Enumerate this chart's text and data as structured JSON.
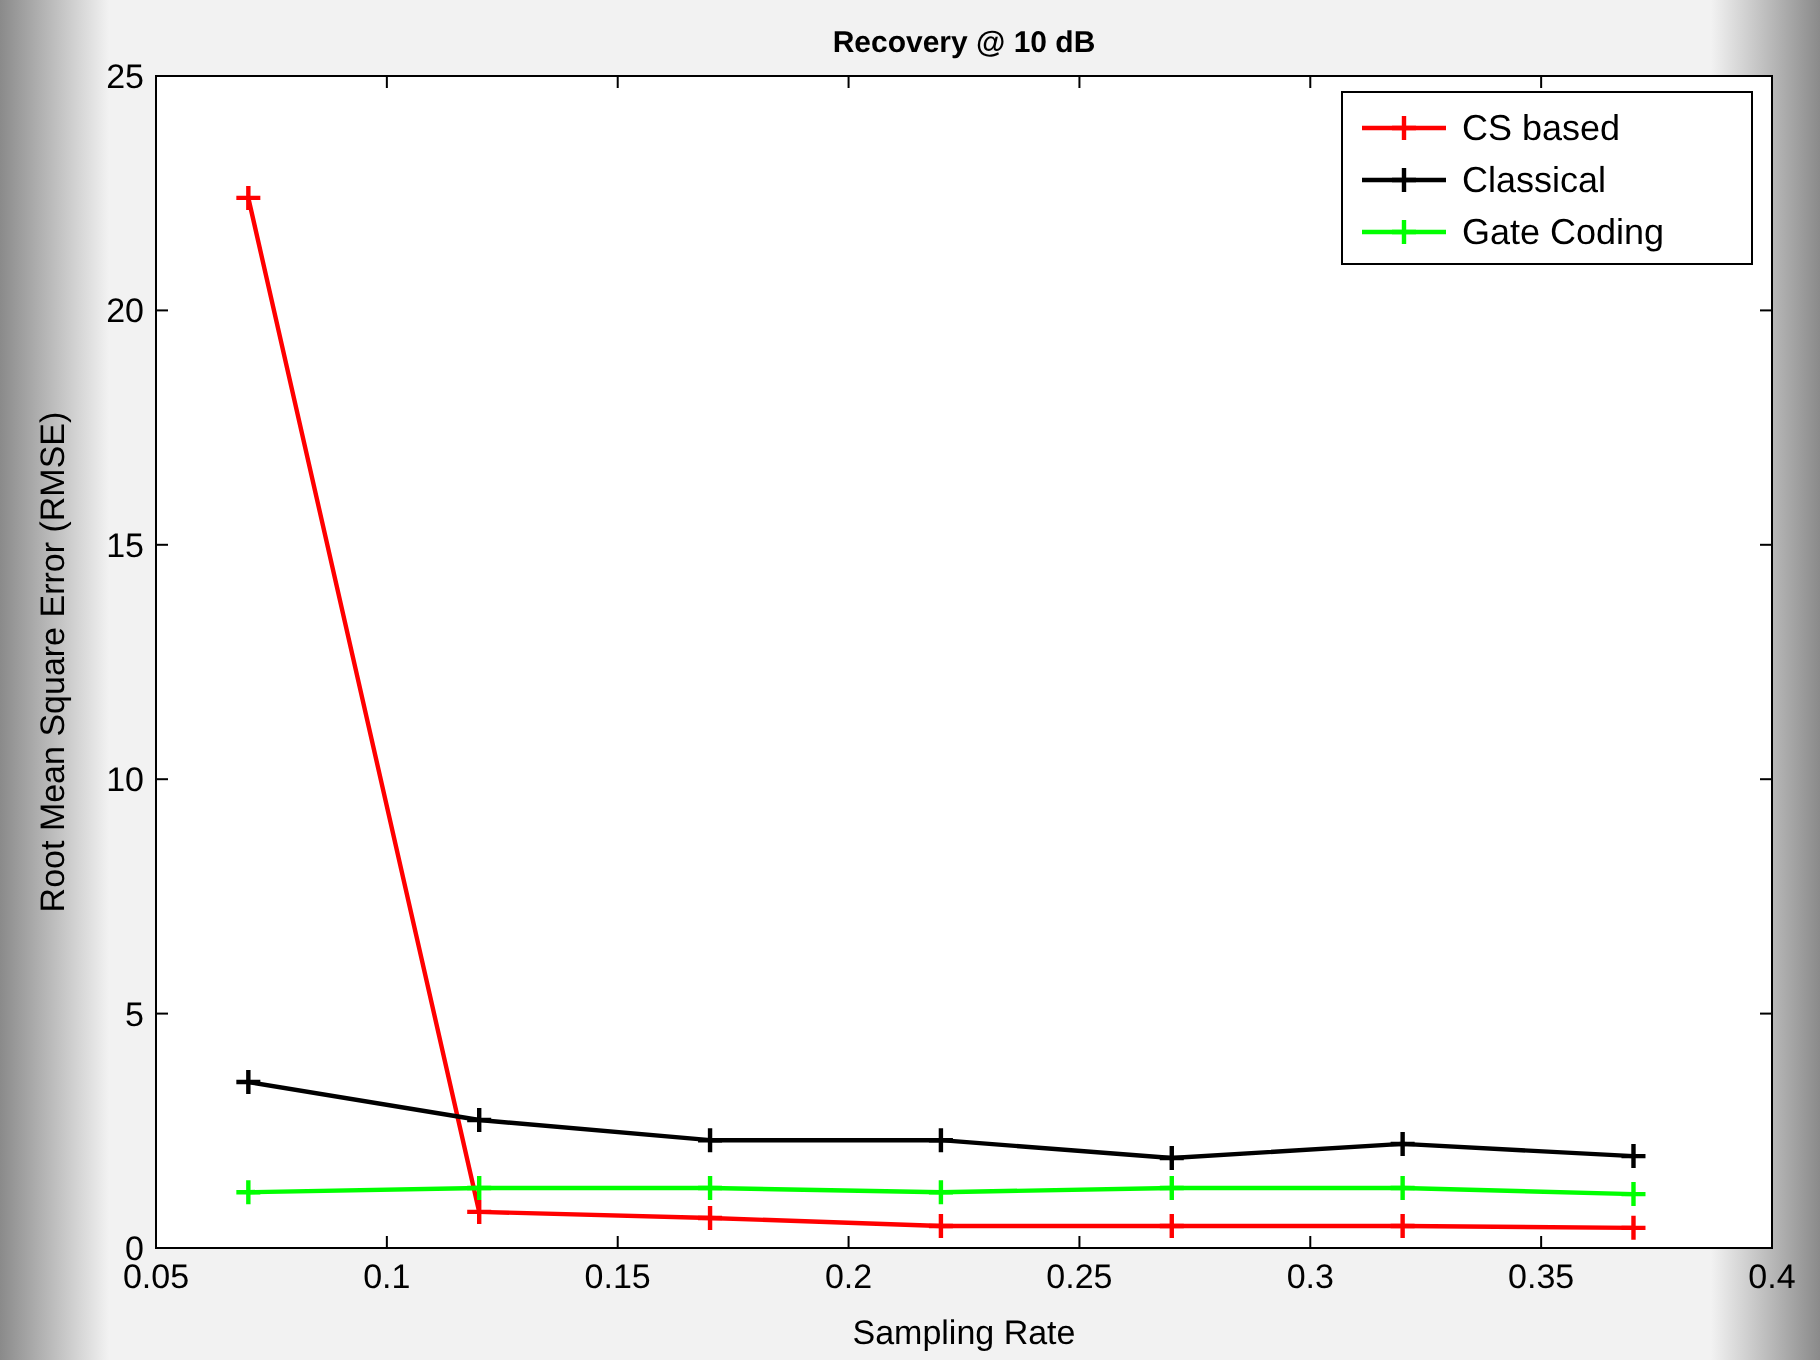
{
  "chart_data": {
    "type": "line",
    "title": "Recovery @ 10 dB",
    "xlabel": "Sampling Rate",
    "ylabel": "Root Mean Square Error (RMSE)",
    "x": [
      0.07,
      0.12,
      0.17,
      0.22,
      0.27,
      0.32,
      0.37
    ],
    "series": [
      {
        "name": "CS based",
        "color": "#ff0000",
        "values": [
          22.4,
          0.77,
          0.64,
          0.47,
          0.47,
          0.47,
          0.43
        ]
      },
      {
        "name": "Classical",
        "color": "#000000",
        "values": [
          3.54,
          2.73,
          2.3,
          2.3,
          1.92,
          2.22,
          1.96
        ]
      },
      {
        "name": "Gate Coding",
        "color": "#00ff00",
        "values": [
          1.19,
          1.28,
          1.28,
          1.19,
          1.28,
          1.28,
          1.15
        ]
      }
    ],
    "xlim": [
      0.05,
      0.4
    ],
    "xticks": [
      0.05,
      0.1,
      0.15,
      0.2,
      0.25,
      0.3,
      0.35,
      0.4
    ],
    "ylim": [
      0,
      25
    ],
    "yticks": [
      0,
      5,
      10,
      15,
      20,
      25
    ],
    "grid": false,
    "legend": "top right",
    "marker": "cross",
    "line_style": "solid"
  }
}
